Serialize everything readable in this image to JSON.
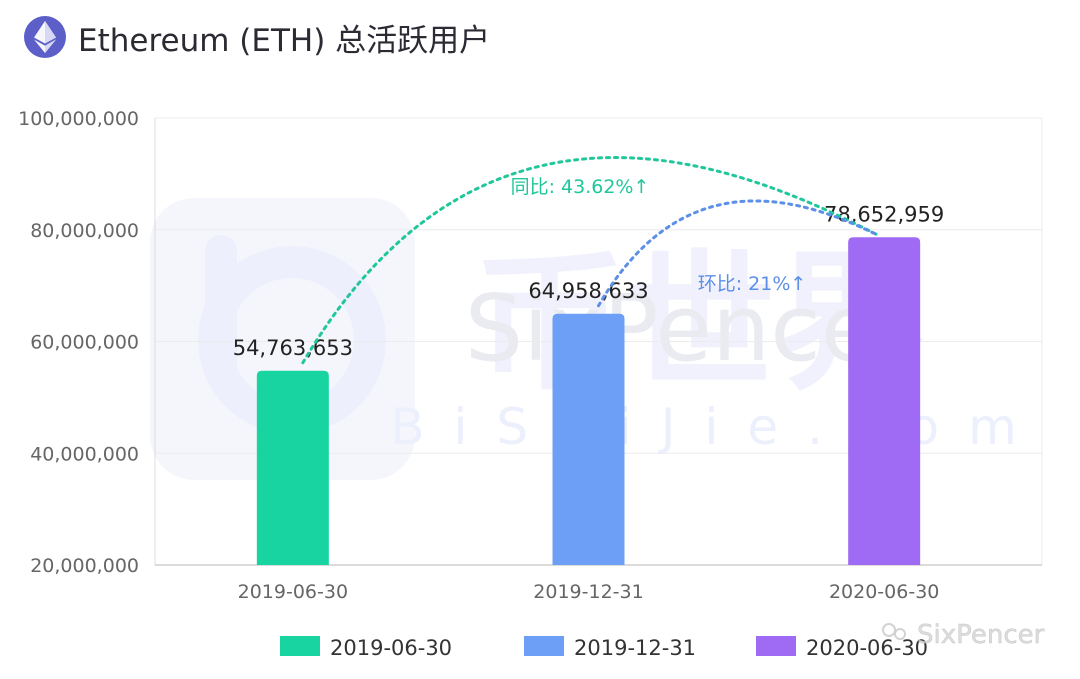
{
  "header": {
    "title": "Ethereum (ETH) 总活跃用户",
    "logo_icon": "ethereum-icon"
  },
  "watermark": {
    "brand": "币世界",
    "latin": "SixPencer",
    "url": "BiShiJie.com",
    "corner": "SixPencer"
  },
  "chart_data": {
    "type": "bar",
    "categories": [
      "2019-06-30",
      "2019-12-31",
      "2020-06-30"
    ],
    "values": [
      54763653,
      64958633,
      78652959
    ],
    "value_labels": [
      "54,763,653",
      "64,958,633",
      "78,652,959"
    ],
    "colors": [
      "#18d4a0",
      "#6e9ff7",
      "#9f6bf5"
    ],
    "ylim": [
      20000000,
      100000000
    ],
    "yticks": [
      20000000,
      40000000,
      60000000,
      80000000,
      100000000
    ],
    "ytick_labels": [
      "20,000,000",
      "40,000,000",
      "60,000,000",
      "80,000,000",
      "100,000,000"
    ],
    "grid": true,
    "legend": {
      "position": "bottom",
      "entries": [
        "2019-06-30",
        "2019-12-31",
        "2020-06-30"
      ]
    },
    "annotations": [
      {
        "text": "同比: 43.62%↑",
        "from": "2019-06-30",
        "to": "2020-06-30",
        "color": "#1fc79a"
      },
      {
        "text": "环比: 21%↑",
        "from": "2019-12-31",
        "to": "2020-06-30",
        "color": "#5b8fe8"
      }
    ]
  }
}
